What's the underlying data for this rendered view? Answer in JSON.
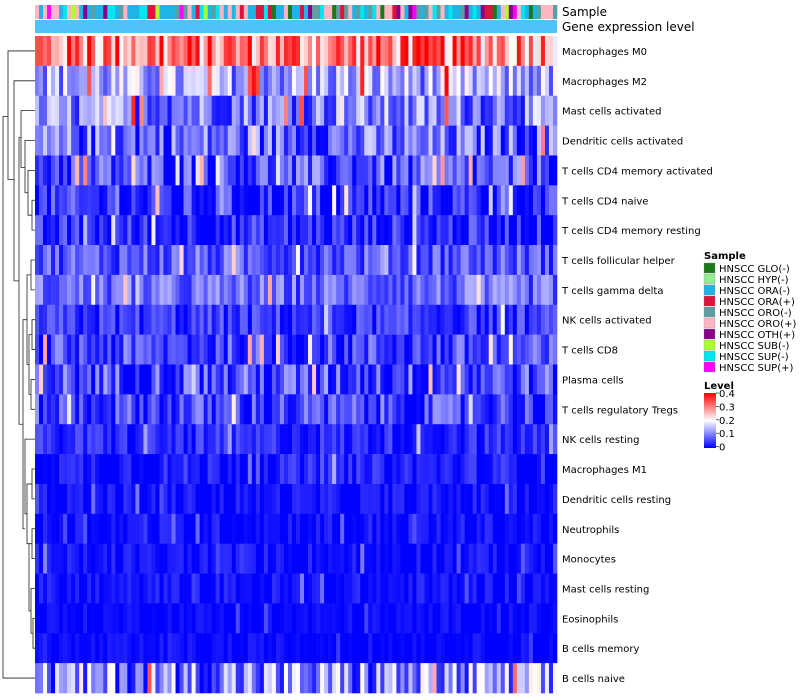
{
  "chart_data": {
    "type": "heatmap",
    "annotation_labels": [
      "Sample",
      "Gene expression level"
    ],
    "rows": [
      {
        "label": "Macrophages M0",
        "mean": 0.3,
        "spread": 0.12
      },
      {
        "label": "Macrophages M2",
        "mean": 0.13,
        "spread": 0.09
      },
      {
        "label": "Mast cells activated",
        "mean": 0.1,
        "spread": 0.09
      },
      {
        "label": "Dendritic cells activated",
        "mean": 0.08,
        "spread": 0.09
      },
      {
        "label": "T cells CD4 memory activated",
        "mean": 0.06,
        "spread": 0.08
      },
      {
        "label": "T cells CD4 naive",
        "mean": 0.03,
        "spread": 0.07
      },
      {
        "label": "T cells CD4 memory resting",
        "mean": 0.03,
        "spread": 0.06
      },
      {
        "label": "T cells follicular helper",
        "mean": 0.07,
        "spread": 0.06
      },
      {
        "label": "T cells gamma delta",
        "mean": 0.08,
        "spread": 0.06
      },
      {
        "label": "NK cells activated",
        "mean": 0.04,
        "spread": 0.05
      },
      {
        "label": "T cells CD8",
        "mean": 0.05,
        "spread": 0.07
      },
      {
        "label": "Plasma cells",
        "mean": 0.06,
        "spread": 0.08
      },
      {
        "label": "T cells regulatory  Tregs",
        "mean": 0.05,
        "spread": 0.07
      },
      {
        "label": "NK cells resting",
        "mean": 0.03,
        "spread": 0.04
      },
      {
        "label": "Macrophages M1",
        "mean": 0.02,
        "spread": 0.04
      },
      {
        "label": "Dendritic cells resting",
        "mean": 0.01,
        "spread": 0.03
      },
      {
        "label": "Neutrophils",
        "mean": 0.01,
        "spread": 0.03
      },
      {
        "label": "Monocytes",
        "mean": 0.01,
        "spread": 0.03
      },
      {
        "label": "Mast cells resting",
        "mean": 0.01,
        "spread": 0.03
      },
      {
        "label": "Eosinophils",
        "mean": 0.005,
        "spread": 0.02
      },
      {
        "label": "B cells memory",
        "mean": 0.005,
        "spread": 0.02
      },
      {
        "label": "B cells naive",
        "mean": 0.1,
        "spread": 0.12
      }
    ],
    "n_samples": 130,
    "sample_legend": {
      "title": "Sample",
      "entries": [
        {
          "label": "HNSCC GLO(-)",
          "color": "#1a7a1a"
        },
        {
          "label": "HNSCC HYP(-)",
          "color": "#90ee90"
        },
        {
          "label": "HNSCC ORA(-)",
          "color": "#1eb4e6"
        },
        {
          "label": "HNSCC ORA(+)",
          "color": "#dc143c"
        },
        {
          "label": "HNSCC ORO(-)",
          "color": "#5f9ea0"
        },
        {
          "label": "HNSCC ORO(+)",
          "color": "#ffb6c1"
        },
        {
          "label": "HNSCC OTH(+)",
          "color": "#8b008b"
        },
        {
          "label": "HNSCC SUB(-)",
          "color": "#adff2f"
        },
        {
          "label": "HNSCC SUP(-)",
          "color": "#00e5ee"
        },
        {
          "label": "HNSCC SUP(+)",
          "color": "#ff00ff"
        }
      ]
    },
    "color_scale": {
      "title": "Level",
      "range": [
        0,
        0.4
      ],
      "ticks": [
        "0.4",
        "0.3",
        "0.2",
        "0.1",
        "0"
      ],
      "colors": [
        "#0000ff",
        "#ffffff",
        "#ff0000"
      ]
    },
    "expression_bar_color": "#4fc3f7",
    "label_color": "#000000"
  }
}
